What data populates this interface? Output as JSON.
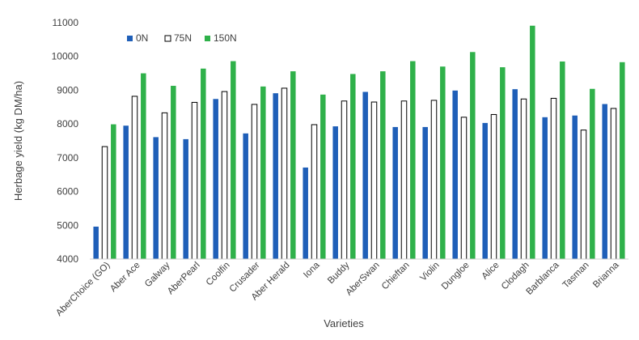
{
  "chart_data": {
    "type": "bar",
    "title": "",
    "xlabel": "Varieties",
    "ylabel": "Herbage yield (kg DM/ha)",
    "ylim": [
      4000,
      11000
    ],
    "yticks": [
      4000,
      5000,
      6000,
      7000,
      8000,
      9000,
      10000,
      11000
    ],
    "grid": false,
    "legend_position": "top-left",
    "categories": [
      "AberChoice (GO)",
      "Aber Ace",
      "Galway",
      "AberPearl",
      "Coolfin",
      "Crusader",
      "Aber Herald",
      "Iona",
      "Buddy",
      "AberSwan",
      "Chieftan",
      "Violin",
      "Dungloe",
      "Alice",
      "Clodagh",
      "Barblanca",
      "Tasman",
      "Brianna"
    ],
    "series": [
      {
        "name": "0N",
        "color": "#1f5fb8",
        "values": [
          4960,
          7950,
          7610,
          7550,
          8740,
          7720,
          8910,
          6710,
          7930,
          8950,
          7910,
          7910,
          8990,
          8030,
          9030,
          8200,
          8250,
          8590
        ]
      },
      {
        "name": "75N",
        "color": "#ffffff",
        "values": [
          7330,
          8820,
          8330,
          8640,
          8960,
          8580,
          9060,
          7980,
          8680,
          8650,
          8680,
          8700,
          8200,
          8280,
          8740,
          8760,
          7820,
          8460
        ]
      },
      {
        "name": "150N",
        "color": "#2fb14a",
        "values": [
          7990,
          9500,
          9130,
          9640,
          9860,
          9110,
          9560,
          8870,
          9480,
          9560,
          9860,
          9700,
          10130,
          9680,
          10910,
          9850,
          9040,
          9830
        ]
      }
    ]
  }
}
